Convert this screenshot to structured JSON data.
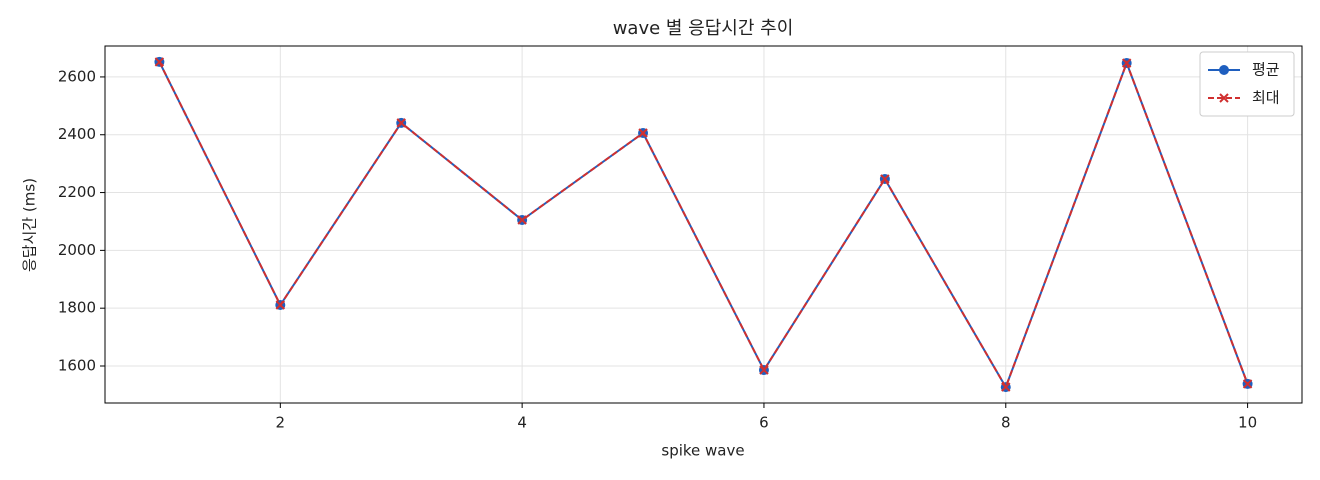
{
  "chart_data": {
    "type": "line",
    "title": "wave 별 응답시간 추이",
    "x_label": "spike wave",
    "y_label": "응답시간 (ms)",
    "x": [
      1,
      2,
      3,
      4,
      5,
      6,
      7,
      8,
      9,
      10
    ],
    "series": [
      {
        "name": "평균",
        "color": "#1f5fbf",
        "marker": "o",
        "linestyle": "solid",
        "values": [
          2652,
          1811,
          2441,
          2105,
          2406,
          1586,
          2247,
          1527,
          2648,
          1538
        ]
      },
      {
        "name": "최대",
        "color": "#d03030",
        "marker": "x",
        "linestyle": "dashed",
        "values": [
          2652,
          1811,
          2441,
          2105,
          2406,
          1586,
          2247,
          1527,
          2648,
          1538
        ]
      }
    ],
    "xlim": [
      0.55,
      10.45
    ],
    "xticks": [
      2,
      4,
      6,
      8,
      10
    ],
    "ylim": [
      1472,
      2707
    ],
    "yticks": [
      1600,
      1800,
      2000,
      2200,
      2400,
      2600
    ],
    "grid": true,
    "legend": "upper right"
  }
}
